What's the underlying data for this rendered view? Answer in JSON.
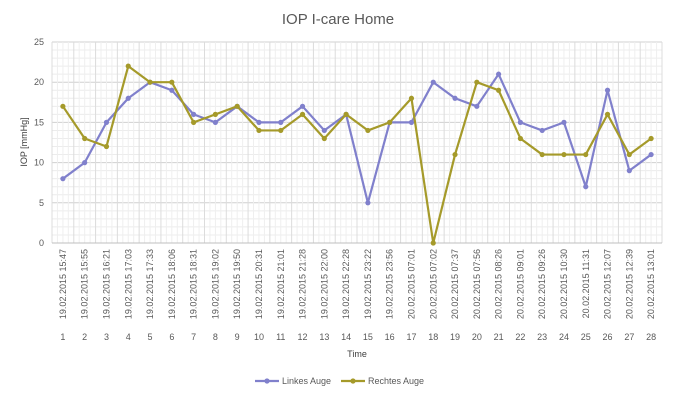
{
  "chart_data": {
    "type": "line",
    "title": "IOP I-care Home",
    "xlabel": "Time",
    "ylabel": "IOP [mmHg]",
    "ylim": [
      0,
      25
    ],
    "y_ticks": [
      0,
      5,
      10,
      15,
      20,
      25
    ],
    "grid": true,
    "legend_position": "bottom",
    "categories": [
      "1",
      "2",
      "3",
      "4",
      "5",
      "6",
      "7",
      "8",
      "9",
      "10",
      "11",
      "12",
      "13",
      "14",
      "15",
      "16",
      "17",
      "18",
      "19",
      "20",
      "21",
      "22",
      "23",
      "24",
      "25",
      "26",
      "27",
      "28"
    ],
    "timestamps": [
      "19.02.2015 15:47",
      "19.02.2015 15:55",
      "19.02.2015 16:21",
      "19.02.2015 17:03",
      "19.02.2015 17:33",
      "19.02.2015 18:06",
      "19.02.2015 18:31",
      "19.02.2015 19:02",
      "19.02.2015 19:50",
      "19.02.2015 20:31",
      "19.02.2015 21:01",
      "19.02.2015 21:28",
      "19.02.2015 22:00",
      "19.02.2015 22:28",
      "19.02.2015 23:22",
      "19.02.2015 23:56",
      "20.02.2015 07:01",
      "20.02.2015 07:02",
      "20.02.2015 07:37",
      "20.02.2015 07:56",
      "20.02.2015 08:26",
      "20.02.2015 09:01",
      "20.02.2015 09:26",
      "20.02.2015 10:30",
      "20.02.2015 11:31",
      "20.02.2015 12:07",
      "20.02.2015 12:39",
      "20.02.2015 13:01"
    ],
    "series": [
      {
        "name": "Linkes Auge",
        "color": "#8080cc",
        "values": [
          8,
          10,
          15,
          18,
          20,
          19,
          16,
          15,
          17,
          15,
          15,
          17,
          14,
          16,
          5,
          15,
          15,
          20,
          18,
          17,
          21,
          15,
          14,
          15,
          7,
          19,
          9,
          11
        ]
      },
      {
        "name": "Rechtes Auge",
        "color": "#a59a2a",
        "values": [
          17,
          13,
          12,
          22,
          20,
          20,
          15,
          16,
          17,
          14,
          14,
          16,
          13,
          16,
          14,
          15,
          18,
          0,
          11,
          20,
          19,
          13,
          11,
          11,
          11,
          16,
          11,
          13
        ]
      }
    ]
  }
}
